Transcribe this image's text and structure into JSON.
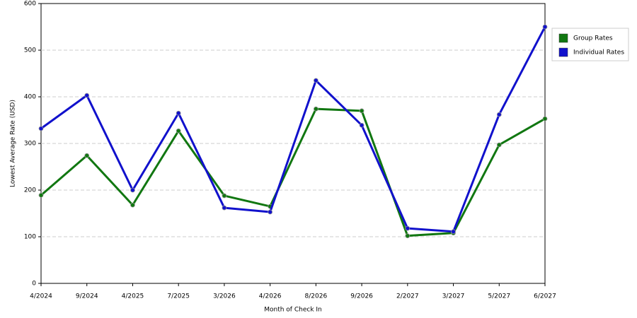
{
  "chart_data": {
    "type": "line",
    "x_label": "Month of Check In",
    "y_label": "Lowest Average Rate (USD)",
    "categories": [
      "4/2024",
      "9/2024",
      "4/2025",
      "7/2025",
      "3/2026",
      "4/2026",
      "8/2026",
      "9/2026",
      "2/2027",
      "3/2027",
      "5/2027",
      "6/2027"
    ],
    "series": [
      {
        "name": "Group Rates",
        "color": "#117711",
        "values": [
          189,
          274,
          168,
          327,
          188,
          165,
          374,
          370,
          102,
          108,
          297,
          353
        ]
      },
      {
        "name": "Individual Rates",
        "color": "#1111cc",
        "values": [
          332,
          403,
          200,
          365,
          162,
          153,
          435,
          339,
          118,
          111,
          362,
          550
        ]
      }
    ],
    "ylim": [
      0,
      600
    ],
    "yticks": [
      0,
      100,
      200,
      300,
      400,
      500,
      600
    ],
    "grid": true,
    "legend": "right"
  }
}
